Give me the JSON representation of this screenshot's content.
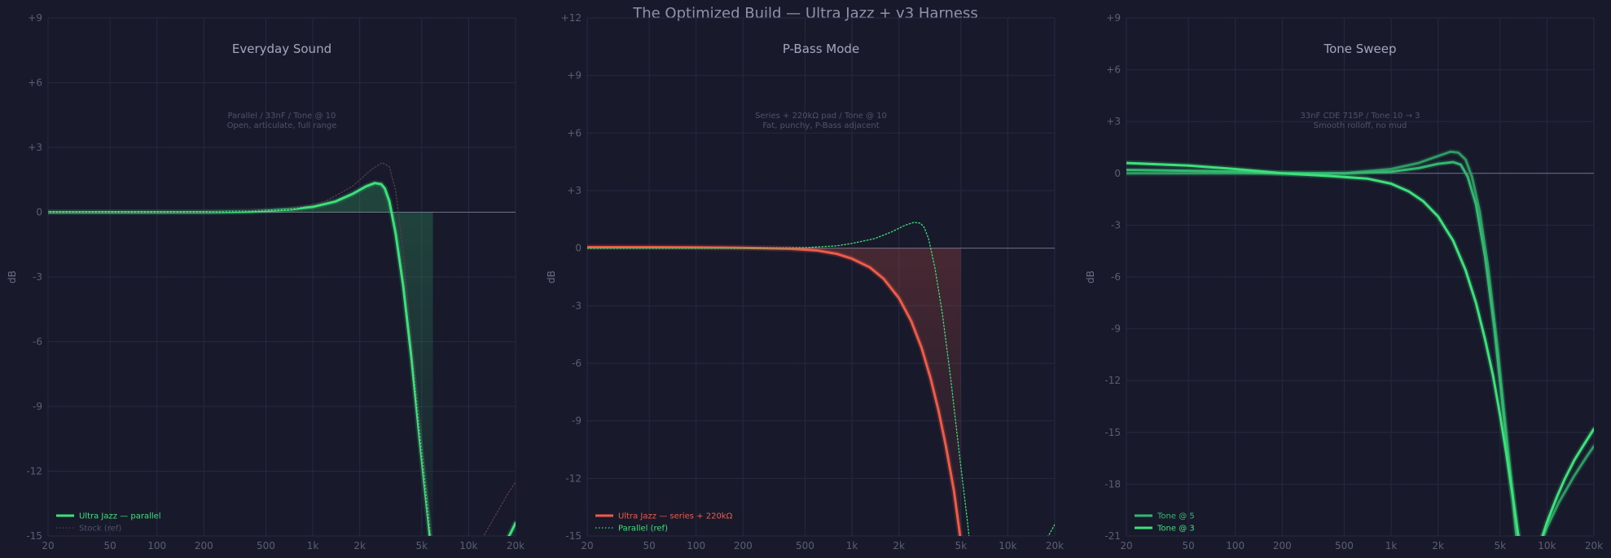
{
  "title": "The Optimized Build — Ultra Jazz + v3 Harness",
  "chart_data": [
    {
      "type": "line",
      "title": "Everyday Sound",
      "subtitle": [
        "Parallel / 33nF / Tone @ 10",
        "Open, articulate, full range"
      ],
      "xlabel": "",
      "ylabel": "dB",
      "xscale": "log",
      "xlim": [
        20,
        20000
      ],
      "ylim": [
        -15,
        9
      ],
      "xticks": [
        20,
        50,
        100,
        200,
        500,
        1000,
        2000,
        5000,
        10000,
        20000
      ],
      "xtick_labels": [
        "20",
        "50",
        "100",
        "200",
        "500",
        "1k",
        "2k",
        "5k",
        "10k",
        "20k"
      ],
      "yticks": [
        -15,
        -12,
        -9,
        -6,
        -3,
        0,
        3,
        6,
        9
      ],
      "ytick_labels": [
        "-15",
        "-12",
        "-9",
        "-6",
        "-3",
        "0",
        "+3",
        "+6",
        "+9"
      ],
      "grid": true,
      "legend": "bottom-left",
      "fill": "#3ee07a",
      "series": [
        {
          "name": "Ultra Jazz — parallel",
          "style": "solid",
          "color": "#3ee07a",
          "legend": true,
          "x": [
            20,
            50,
            100,
            200,
            400,
            700,
            1000,
            1400,
            1800,
            2200,
            2500,
            2750,
            2900,
            3100,
            3400,
            3800,
            4300,
            4900,
            5500,
            5900
          ],
          "y": [
            0,
            0,
            0,
            0,
            0.03,
            0.12,
            0.25,
            0.5,
            0.85,
            1.2,
            1.35,
            1.3,
            1.1,
            0.5,
            -1.0,
            -3.4,
            -6.8,
            -10.8,
            -14.2,
            -16.5
          ]
        },
        {
          "name": "",
          "style": "solid",
          "color": "#3ee07a",
          "legend": false,
          "x": [
            17500,
            18500,
            20000
          ],
          "y": [
            -15.2,
            -14.9,
            -14.4
          ]
        },
        {
          "name": "Stock (ref)",
          "style": "dotted",
          "color": "#5a3a52",
          "legend": true,
          "x": [
            20,
            200,
            700,
            1200,
            1800,
            2400,
            2800,
            3100,
            3400,
            3800,
            4300,
            4900,
            5500,
            6000
          ],
          "y": [
            0,
            0,
            0.12,
            0.5,
            1.2,
            2.0,
            2.3,
            2.1,
            1.0,
            -1.8,
            -6.0,
            -10.5,
            -14.0,
            -16.0
          ]
        },
        {
          "name": "",
          "style": "dotted",
          "color": "#5a3a52",
          "legend": false,
          "x": [
            12000,
            15000,
            18000,
            20000
          ],
          "y": [
            -15.2,
            -14.0,
            -13.0,
            -12.5
          ]
        }
      ]
    },
    {
      "type": "line",
      "title": "P-Bass Mode",
      "subtitle": [
        "Series + 220kΩ pad / Tone @ 10",
        "Fat, punchy, P-Bass adjacent"
      ],
      "xlabel": "",
      "ylabel": "dB",
      "xscale": "log",
      "xlim": [
        20,
        20000
      ],
      "ylim": [
        -15,
        12
      ],
      "xticks": [
        20,
        50,
        100,
        200,
        500,
        1000,
        2000,
        5000,
        10000,
        20000
      ],
      "xtick_labels": [
        "20",
        "50",
        "100",
        "200",
        "500",
        "1k",
        "2k",
        "5k",
        "10k",
        "20k"
      ],
      "yticks": [
        -15,
        -12,
        -9,
        -6,
        -3,
        0,
        3,
        6,
        9,
        12
      ],
      "ytick_labels": [
        "-15",
        "-12",
        "-9",
        "-6",
        "-3",
        "0",
        "+3",
        "+6",
        "+9",
        "+12"
      ],
      "grid": true,
      "legend": "bottom-left",
      "fill": "#ef5b47",
      "series": [
        {
          "name": "Ultra Jazz — series + 220kΩ",
          "style": "solid",
          "color": "#ef5b47",
          "legend": true,
          "x": [
            20,
            50,
            100,
            200,
            400,
            600,
            800,
            1000,
            1300,
            1600,
            2000,
            2400,
            2800,
            3200,
            3600,
            4000,
            4500,
            5000
          ],
          "y": [
            0.05,
            0.05,
            0.04,
            0.02,
            -0.03,
            -0.12,
            -0.3,
            -0.55,
            -1.0,
            -1.6,
            -2.6,
            -3.8,
            -5.2,
            -6.8,
            -8.5,
            -10.3,
            -12.6,
            -15.3
          ]
        },
        {
          "name": "Parallel (ref)",
          "style": "dotted",
          "color": "#3ee07a",
          "legend": true,
          "x": [
            20,
            200,
            500,
            800,
            1000,
            1400,
            1800,
            2200,
            2500,
            2750,
            2900,
            3100,
            3400,
            3800,
            4300,
            4900,
            5500,
            5900
          ],
          "y": [
            0,
            0,
            0.03,
            0.12,
            0.25,
            0.5,
            0.85,
            1.2,
            1.35,
            1.3,
            1.1,
            0.5,
            -1.0,
            -3.4,
            -6.8,
            -10.8,
            -14.2,
            -16.5
          ]
        },
        {
          "name": "",
          "style": "dotted",
          "color": "#3ee07a",
          "legend": false,
          "x": [
            17500,
            18500,
            20000
          ],
          "y": [
            -15.2,
            -14.9,
            -14.4
          ]
        }
      ]
    },
    {
      "type": "line",
      "title": "Tone Sweep",
      "subtitle": [
        "33nF CDE 715P / Tone 10 → 3",
        "Smooth rolloff, no mud"
      ],
      "xlabel": "",
      "ylabel": "dB",
      "xscale": "log",
      "xlim": [
        20,
        20000
      ],
      "ylim": [
        -21,
        9
      ],
      "xticks": [
        20,
        50,
        100,
        200,
        500,
        1000,
        2000,
        5000,
        10000,
        20000
      ],
      "xtick_labels": [
        "20",
        "50",
        "100",
        "200",
        "500",
        "1k",
        "2k",
        "5k",
        "10k",
        "20k"
      ],
      "yticks": [
        -21,
        -18,
        -15,
        -12,
        -9,
        -6,
        -3,
        0,
        3,
        6,
        9
      ],
      "ytick_labels": [
        "-21",
        "-18",
        "-15",
        "-12",
        "-9",
        "-6",
        "-3",
        "0",
        "+3",
        "+6",
        "+9"
      ],
      "grid": true,
      "legend": "bottom-left",
      "series": [
        {
          "name": "",
          "style": "solid",
          "color": "#2f9a62",
          "legend": false,
          "x": [
            20,
            50,
            100,
            200,
            500,
            1000,
            1500,
            2000,
            2400,
            2700,
            3000,
            3300,
            3700,
            4200,
            4800,
            5400,
            6000,
            6500
          ],
          "y": [
            0,
            0,
            0,
            0,
            0,
            0.25,
            0.6,
            1.0,
            1.25,
            1.2,
            0.8,
            -0.2,
            -2.2,
            -5.5,
            -10,
            -14.5,
            -18.5,
            -22
          ]
        },
        {
          "name": "Tone @ 5",
          "style": "solid",
          "color": "#34b870",
          "legend": true,
          "x": [
            20,
            50,
            100,
            200,
            500,
            1000,
            1500,
            2000,
            2500,
            2800,
            3100,
            3500,
            4000,
            4600,
            5200,
            5800,
            6400,
            7000
          ],
          "y": [
            0.2,
            0.15,
            0.1,
            0,
            0,
            0.1,
            0.3,
            0.55,
            0.65,
            0.5,
            -0.2,
            -1.8,
            -4.8,
            -9,
            -13.5,
            -17.5,
            -20.5,
            -22.5
          ]
        },
        {
          "name": "",
          "style": "solid",
          "color": "#2f9a62",
          "legend": false,
          "x": [
            9000,
            10000,
            12000,
            15000,
            18000,
            20000
          ],
          "y": [
            -21.5,
            -20.5,
            -19,
            -17.5,
            -16.4,
            -15.8
          ]
        },
        {
          "name": "Tone @ 3",
          "style": "solid",
          "color": "#3ee07a",
          "legend": true,
          "x": [
            20,
            50,
            100,
            200,
            400,
            700,
            1000,
            1300,
            1600,
            2000,
            2500,
            3000,
            3500,
            4000,
            4500,
            5000,
            5500,
            6000,
            6500,
            7000
          ],
          "y": [
            0.6,
            0.45,
            0.25,
            0,
            -0.15,
            -0.3,
            -0.6,
            -1.05,
            -1.6,
            -2.5,
            -3.9,
            -5.6,
            -7.5,
            -9.6,
            -11.7,
            -14,
            -16.3,
            -18.6,
            -20.8,
            -22.5
          ]
        },
        {
          "name": "",
          "style": "solid",
          "color": "#3ee07a",
          "legend": false,
          "x": [
            9000,
            10000,
            11500,
            13000,
            15000,
            17000,
            20000
          ],
          "y": [
            -21.5,
            -20.2,
            -18.8,
            -17.7,
            -16.6,
            -15.8,
            -14.8
          ]
        }
      ]
    }
  ]
}
